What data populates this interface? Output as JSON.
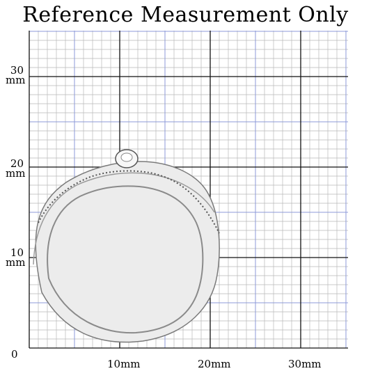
{
  "title": "Reference Measurement Only",
  "y_labels": [
    {
      "num": "30",
      "unit": "mm"
    },
    {
      "num": "20",
      "unit": "mm"
    },
    {
      "num": "10",
      "unit": "mm"
    },
    {
      "num": "0",
      "unit": ""
    }
  ],
  "x_labels": [
    "10mm",
    "20mm",
    "30mm"
  ],
  "colors": {
    "fine_grid": "#b8b8b8",
    "mid_grid": "#8c9ad8",
    "major_grid": "#111111",
    "ring_metal": "#e9e9e9",
    "ring_edge": "#6a6a6a"
  },
  "object": "ring-photo"
}
